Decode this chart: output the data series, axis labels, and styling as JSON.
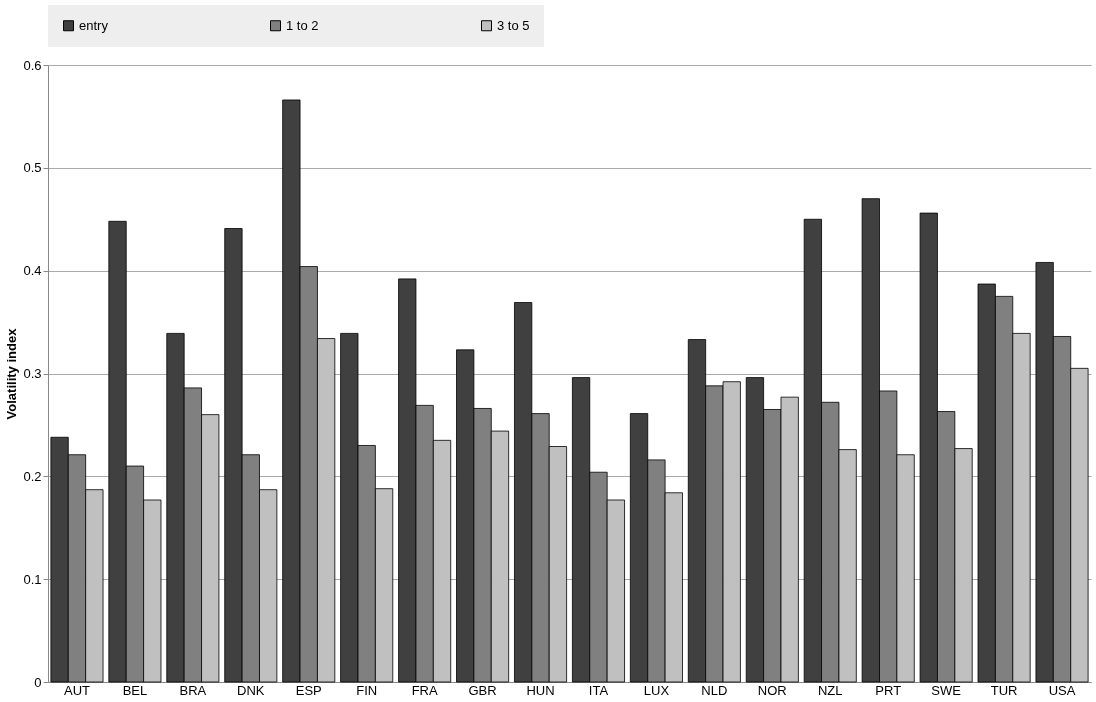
{
  "chart_data": {
    "type": "bar",
    "ylabel": "Volatility index",
    "categories": [
      "AUT",
      "BEL",
      "BRA",
      "DNK",
      "ESP",
      "FIN",
      "FRA",
      "GBR",
      "HUN",
      "ITA",
      "LUX",
      "NLD",
      "NOR",
      "NZL",
      "PRT",
      "SWE",
      "TUR",
      "USA"
    ],
    "series": [
      {
        "name": "entry",
        "color": "#404040",
        "values": [
          0.238,
          0.448,
          0.339,
          0.441,
          0.566,
          0.339,
          0.392,
          0.323,
          0.369,
          0.296,
          0.261,
          0.333,
          0.296,
          0.45,
          0.47,
          0.456,
          0.387,
          0.408
        ]
      },
      {
        "name": "1 to 2",
        "color": "#808080",
        "values": [
          0.221,
          0.21,
          0.286,
          0.221,
          0.404,
          0.23,
          0.269,
          0.266,
          0.261,
          0.204,
          0.216,
          0.288,
          0.265,
          0.272,
          0.283,
          0.263,
          0.375,
          0.336
        ]
      },
      {
        "name": "3 to 5",
        "color": "#c0c0c0",
        "values": [
          0.187,
          0.177,
          0.26,
          0.187,
          0.334,
          0.188,
          0.235,
          0.244,
          0.229,
          0.177,
          0.184,
          0.292,
          0.277,
          0.226,
          0.221,
          0.227,
          0.339,
          0.305
        ]
      }
    ],
    "ylim": [
      0,
      0.6
    ],
    "yticks": [
      0,
      0.1,
      0.2,
      0.3,
      0.4,
      0.5,
      0.6
    ],
    "grid": "y",
    "legend": "top"
  }
}
